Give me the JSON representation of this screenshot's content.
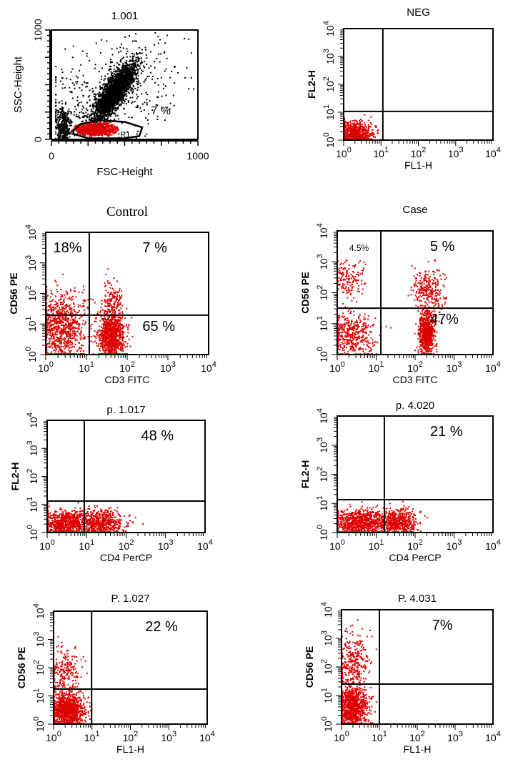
{
  "chart_data": [
    {
      "type": "scatter",
      "title": "1.001",
      "xlabel": "FSC-Height",
      "ylabel": "SSC-Height",
      "scale": "linear",
      "xlim": [
        0,
        1000
      ],
      "ylim": [
        0,
        1000
      ],
      "xticks": [
        "0",
        "1000"
      ],
      "yticks": [
        "0",
        "1000"
      ],
      "gate": {
        "label": "R1",
        "percent": "7 %"
      },
      "dot_colors": {
        "all": "#000000",
        "gated": "#dd0000"
      },
      "populations": [
        {
          "color": "#000000",
          "cx": 430,
          "cy": 430,
          "sx": 70,
          "sy": 130,
          "rho": 0.8,
          "n": 2600
        },
        {
          "color": "#000000",
          "cx": 400,
          "cy": 400,
          "sx": 230,
          "sy": 260,
          "rho": 0.4,
          "n": 500
        },
        {
          "color": "#000000",
          "cx": 80,
          "cy": 120,
          "sx": 25,
          "sy": 90,
          "rho": 0,
          "n": 350
        },
        {
          "color": "#dd0000",
          "cx": 300,
          "cy": 90,
          "sx": 80,
          "sy": 28,
          "rho": 0,
          "n": 900
        }
      ]
    },
    {
      "type": "scatter",
      "title": "NEG",
      "xlabel": "FL1-H",
      "ylabel": "FL2-H",
      "scale": "log",
      "xlim": [
        1,
        10000
      ],
      "ylim": [
        1,
        10000
      ],
      "quadrant": {
        "x": 1.05,
        "y": 1.03
      },
      "labels": [],
      "populations": [
        {
          "color": "#dd0000",
          "cx": 0.3,
          "cy": 0.25,
          "sx": 0.22,
          "sy": 0.2,
          "rho": 0,
          "n": 700
        }
      ]
    },
    {
      "type": "scatter",
      "title": "Control",
      "title_font": "serif",
      "xlabel": "CD3 FITC",
      "ylabel": "CD56 PE",
      "scale": "log",
      "xlim": [
        1,
        10000
      ],
      "ylim": [
        1,
        10000
      ],
      "quadrant": {
        "x": 1.07,
        "y": 1.29
      },
      "labels": [
        {
          "text": "7 %",
          "q": "UR"
        },
        {
          "text": "18%",
          "q": "UL"
        },
        {
          "text": "65 %",
          "q": "LR"
        }
      ],
      "populations": [
        {
          "color": "#dd0000",
          "cx": 0.4,
          "cy": 0.9,
          "sx": 0.3,
          "sy": 0.55,
          "rho": 0,
          "n": 900
        },
        {
          "color": "#dd0000",
          "cx": 1.6,
          "cy": 0.6,
          "sx": 0.16,
          "sy": 0.4,
          "rho": 0,
          "n": 1000
        },
        {
          "color": "#dd0000",
          "cx": 1.65,
          "cy": 1.7,
          "sx": 0.12,
          "sy": 0.35,
          "rho": 0,
          "n": 160
        }
      ]
    },
    {
      "type": "scatter",
      "title": "Case",
      "xlabel": "CD3    FITC",
      "ylabel": "CD56   PE",
      "scale": "log",
      "xlim": [
        1,
        10000
      ],
      "ylim": [
        1,
        10000
      ],
      "quadrant": {
        "x": 1.12,
        "y": 1.5
      },
      "labels": [
        {
          "text": "4.5%",
          "q": "UL"
        },
        {
          "text": "5 %",
          "q": "UR"
        },
        {
          "text": "47%",
          "q": "LR"
        }
      ],
      "populations": [
        {
          "color": "#dd0000",
          "cx": 0.35,
          "cy": 0.6,
          "sx": 0.3,
          "sy": 0.35,
          "rho": 0,
          "n": 450
        },
        {
          "color": "#dd0000",
          "cx": 0.3,
          "cy": 2.4,
          "sx": 0.2,
          "sy": 0.35,
          "rho": 0,
          "n": 150
        },
        {
          "color": "#dd0000",
          "cx": 2.3,
          "cy": 0.7,
          "sx": 0.1,
          "sy": 0.35,
          "rho": 0,
          "n": 700
        },
        {
          "color": "#dd0000",
          "cx": 2.35,
          "cy": 2.1,
          "sx": 0.2,
          "sy": 0.35,
          "rho": 0,
          "n": 280
        }
      ]
    },
    {
      "type": "scatter",
      "title": "p. 1.017",
      "xlabel": "CD4 PerCP",
      "ylabel": "FL2-H",
      "scale": "log",
      "xlim": [
        1,
        10000
      ],
      "ylim": [
        1,
        10000
      ],
      "quadrant": {
        "x": 0.94,
        "y": 1.12
      },
      "labels": [
        {
          "text": "48 %",
          "q": "UR"
        }
      ],
      "populations": [
        {
          "color": "#dd0000",
          "cx": 0.45,
          "cy": 0.35,
          "sx": 0.3,
          "sy": 0.22,
          "rho": 0,
          "n": 700
        },
        {
          "color": "#dd0000",
          "cx": 1.35,
          "cy": 0.35,
          "sx": 0.3,
          "sy": 0.22,
          "rho": 0,
          "n": 600
        }
      ]
    },
    {
      "type": "scatter",
      "title": "p. 4.020",
      "xlabel": "CD4 PerCP",
      "ylabel": "FL2-H",
      "scale": "log",
      "xlim": [
        1,
        10000
      ],
      "ylim": [
        1,
        10000
      ],
      "quadrant": {
        "x": 1.21,
        "y": 1.13
      },
      "labels": [
        {
          "text": "21 %",
          "q": "UR"
        }
      ],
      "populations": [
        {
          "color": "#dd0000",
          "cx": 0.6,
          "cy": 0.35,
          "sx": 0.35,
          "sy": 0.22,
          "rho": 0,
          "n": 800
        },
        {
          "color": "#dd0000",
          "cx": 1.55,
          "cy": 0.35,
          "sx": 0.25,
          "sy": 0.22,
          "rho": 0,
          "n": 600
        }
      ]
    },
    {
      "type": "scatter",
      "title": "P. 1.027",
      "xlabel": "FL1-H",
      "ylabel": "CD56 PE",
      "scale": "log",
      "xlim": [
        1,
        10000
      ],
      "ylim": [
        1,
        10000
      ],
      "quadrant": {
        "x": 0.99,
        "y": 1.24
      },
      "labels": [
        {
          "text": "22 %",
          "q": "UR"
        }
      ],
      "populations": [
        {
          "color": "#dd0000",
          "cx": 0.35,
          "cy": 0.5,
          "sx": 0.22,
          "sy": 0.3,
          "rho": 0,
          "n": 1100
        },
        {
          "color": "#dd0000",
          "cx": 0.3,
          "cy": 1.9,
          "sx": 0.2,
          "sy": 0.4,
          "rho": 0,
          "n": 200
        }
      ]
    },
    {
      "type": "scatter",
      "title": "P. 4.031",
      "xlabel": "FL1-H",
      "ylabel": "CD56 PE",
      "scale": "log",
      "xlim": [
        1,
        10000
      ],
      "ylim": [
        1,
        10000
      ],
      "quadrant": {
        "x": 1.0,
        "y": 1.4
      },
      "labels": [
        {
          "text": "7%",
          "q": "UR"
        }
      ],
      "populations": [
        {
          "color": "#dd0000",
          "cx": 0.3,
          "cy": 0.6,
          "sx": 0.2,
          "sy": 0.35,
          "rho": 0,
          "n": 900
        },
        {
          "color": "#dd0000",
          "cx": 0.3,
          "cy": 2.2,
          "sx": 0.2,
          "sy": 0.5,
          "rho": 0,
          "n": 300
        }
      ]
    }
  ]
}
